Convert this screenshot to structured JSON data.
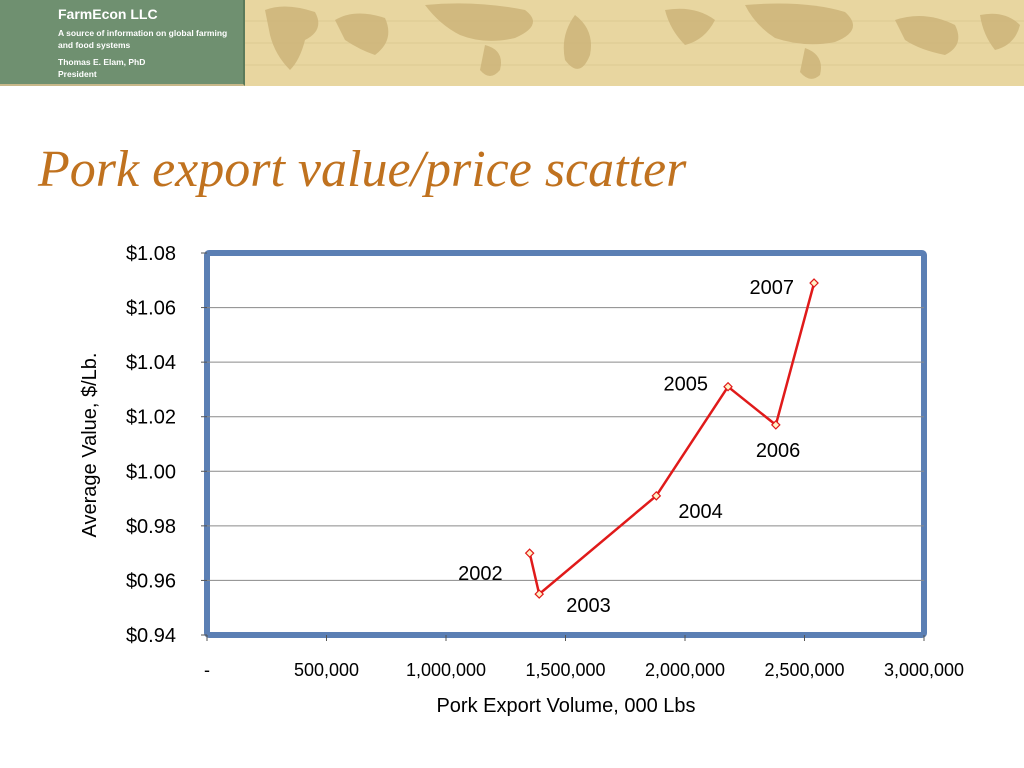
{
  "header": {
    "company": "FarmEcon LLC",
    "tagline": "A source of information on global farming and food systems",
    "person": "Thomas E. Elam, PhD",
    "role": "President"
  },
  "slide": {
    "title": "Pork export value/price scatter"
  },
  "colors": {
    "title": "#c0721f",
    "line": "#e01a1a",
    "frame": "#5b7fb4",
    "brand_bg": "#6f9070",
    "map_bg": "#e8d6a0"
  },
  "chart_data": {
    "type": "scatter",
    "title": "",
    "xlabel": "Pork Export  Volume, 000 Lbs",
    "ylabel": "Average Value, $/Lb.",
    "xlim": [
      0,
      3000000
    ],
    "ylim": [
      0.94,
      1.08
    ],
    "x_ticks": [
      "-",
      "500,000",
      "1,000,000",
      "1,500,000",
      "2,000,000",
      "2,500,000",
      "3,000,000"
    ],
    "y_ticks": [
      "$0.94",
      "$0.96",
      "$0.98",
      "$1.00",
      "$1.02",
      "$1.04",
      "$1.06",
      "$1.08"
    ],
    "grid": true,
    "connected": true,
    "points": [
      {
        "label": "2002",
        "x": 1350000,
        "y": 0.97
      },
      {
        "label": "2003",
        "x": 1390000,
        "y": 0.955
      },
      {
        "label": "2004",
        "x": 1880000,
        "y": 0.991
      },
      {
        "label": "2005",
        "x": 2180000,
        "y": 1.031
      },
      {
        "label": "2006",
        "x": 2380000,
        "y": 1.017
      },
      {
        "label": "2007",
        "x": 2540000,
        "y": 1.069
      }
    ]
  }
}
